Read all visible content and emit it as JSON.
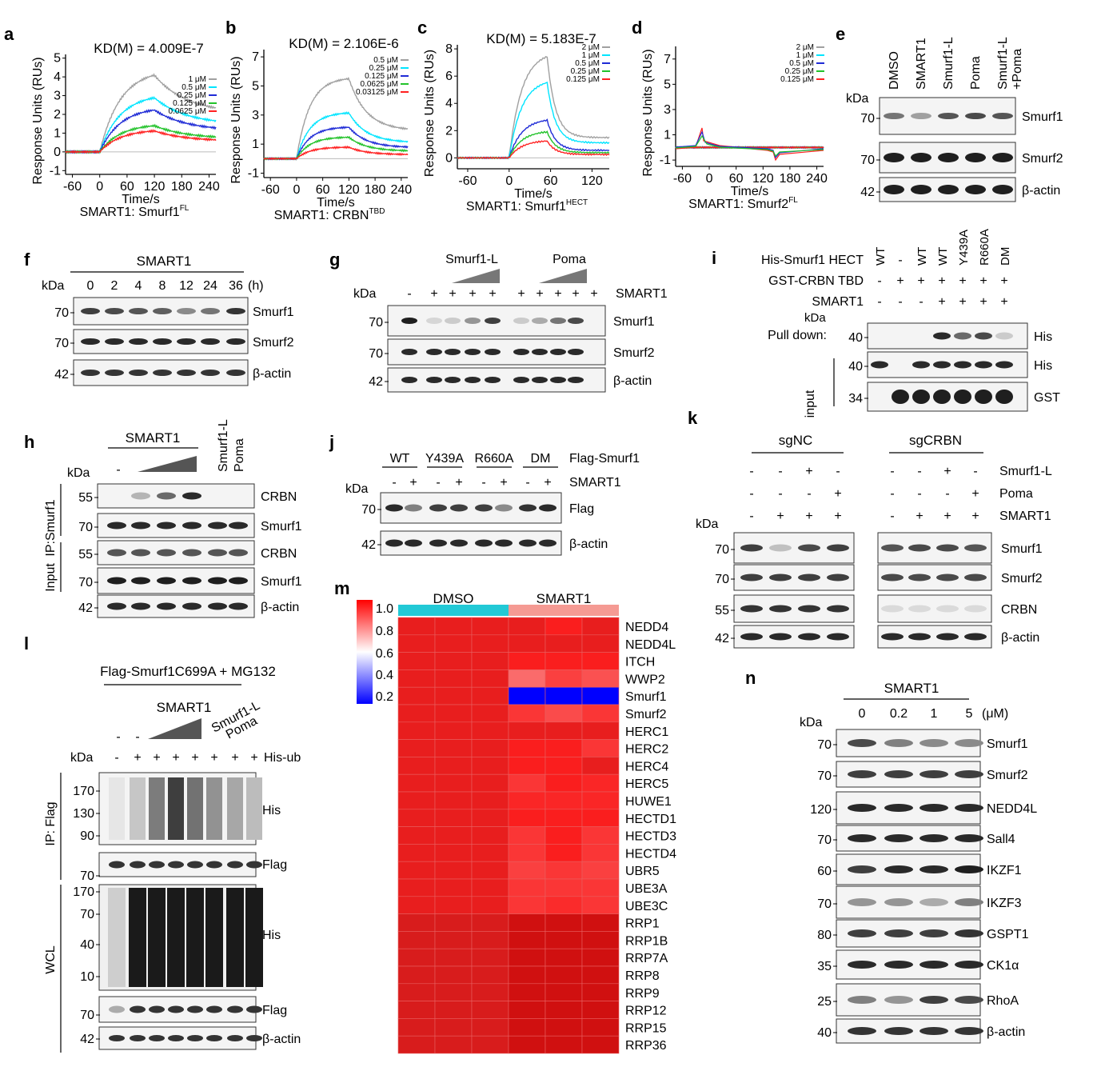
{
  "figure": {
    "panels": {
      "a": {
        "letter": "a",
        "kd": "KD(M) = 4.009E-7",
        "ylabel": "Response Units (RUs)",
        "xlabel": "Time/s",
        "subtitle_main": "SMART1: Smurf1",
        "subtitle_sup": "FL",
        "yticks": [
          "5",
          "4",
          "3",
          "2",
          "1",
          "0",
          "-1"
        ],
        "xticks": [
          "-60",
          "0",
          "60",
          "120",
          "180",
          "240"
        ],
        "legend": [
          "1 μM",
          "0.5 μM",
          "0.25 μM",
          "0.125 μM",
          "0.0625 μM"
        ]
      },
      "b": {
        "letter": "b",
        "kd": "KD(M) = 2.106E-6",
        "ylabel": "Response Units (RUs)",
        "xlabel": "Time/s",
        "subtitle_main": "SMART1: CRBN",
        "subtitle_sup": "TBD",
        "yticks": [
          "7",
          "5",
          "3",
          "1",
          "-1"
        ],
        "xticks": [
          "-60",
          "0",
          "60",
          "120",
          "180",
          "240"
        ],
        "legend": [
          "0.5 μM",
          "0.25 μM",
          "0.125 μM",
          "0.0625 μM",
          "0.03125 μM"
        ]
      },
      "c": {
        "letter": "c",
        "kd": "KD(M) = 5.183E-7",
        "ylabel": "Response Units (RUs)",
        "xlabel": "Time/s",
        "subtitle_main": "SMART1: Smurf1",
        "subtitle_sup": "HECT",
        "yticks": [
          "8",
          "6",
          "4",
          "2",
          "0"
        ],
        "xticks": [
          "-60",
          "0",
          "60",
          "120"
        ],
        "legend": [
          "2 μM",
          "1 μM",
          "0.5 μM",
          "0.25 μM",
          "0.125 μM"
        ]
      },
      "d": {
        "letter": "d",
        "ylabel": "Response Units (RUs)",
        "xlabel": "Time/s",
        "subtitle_main": "SMART1: Smurf2",
        "subtitle_sup": "FL",
        "yticks": [
          "7",
          "5",
          "3",
          "1",
          "-1"
        ],
        "xticks": [
          "-60",
          "0",
          "60",
          "120",
          "180",
          "240"
        ],
        "legend": [
          "2 μM",
          "1 μM",
          "0.5 μM",
          "0.25 μM",
          "0.125 μM"
        ]
      },
      "e": {
        "letter": "e",
        "kda": "kDa",
        "lanes": [
          "DMSO",
          "SMART1",
          "Smurf1-L",
          "Poma",
          "Smurf1-L"
        ],
        "lane5_line2": "+Poma",
        "blots": [
          [
            "70",
            "Smurf1"
          ],
          [
            "70",
            "Smurf2"
          ],
          [
            "42",
            "β-actin"
          ]
        ]
      },
      "f": {
        "letter": "f",
        "kda": "kDa",
        "treatment": "SMART1",
        "times": [
          "0",
          "2",
          "4",
          "8",
          "12",
          "24",
          "36"
        ],
        "unit": "(h)",
        "blots": [
          [
            "70",
            "Smurf1"
          ],
          [
            "70",
            "Smurf2"
          ],
          [
            "42",
            "β-actin"
          ]
        ]
      },
      "g": {
        "letter": "g",
        "kda": "kDa",
        "group1": "Smurf1-L",
        "group2": "Poma",
        "row_label": "SMART1",
        "signs": [
          "-",
          "+",
          "+",
          "+",
          "+",
          "+",
          "+",
          "+",
          "+",
          "+"
        ],
        "blots": [
          [
            "70",
            "Smurf1"
          ],
          [
            "70",
            "Smurf2"
          ],
          [
            "42",
            "β-actin"
          ]
        ]
      },
      "h": {
        "letter": "h",
        "kda": "kDa",
        "treatment": "SMART1",
        "lane1": "-",
        "extra1": "Smurf1-L",
        "extra2": "Poma",
        "ip_label": "IP:Smurf1",
        "input_label": "Input",
        "blots": [
          [
            "55",
            "CRBN"
          ],
          [
            "70",
            "Smurf1"
          ],
          [
            "55",
            "CRBN"
          ],
          [
            "70",
            "Smurf1"
          ],
          [
            "42",
            "β-actin"
          ]
        ]
      },
      "i": {
        "letter": "i",
        "kda": "kDa",
        "rows": [
          {
            "label": "His-Smurf1 HECT",
            "vals": [
              "WT",
              "-",
              "WT",
              "WT",
              "Y439A",
              "R660A",
              "DM"
            ]
          },
          {
            "label": "GST-CRBN TBD",
            "vals": [
              "-",
              "+",
              "+",
              "+",
              "+",
              "+",
              "+"
            ]
          },
          {
            "label": "SMART1",
            "vals": [
              "-",
              "-",
              "-",
              "+",
              "+",
              "+",
              "+"
            ]
          }
        ],
        "pulldown": "Pull down:",
        "input": "input",
        "blots": [
          [
            "40",
            "His"
          ],
          [
            "40",
            "His"
          ],
          [
            "34",
            "GST"
          ]
        ]
      },
      "j": {
        "letter": "j",
        "kda": "kDa",
        "groups": [
          "WT",
          "Y439A",
          "R660A",
          "DM"
        ],
        "row1_label": "Flag-Smurf1",
        "row2_label": "SMART1",
        "signs": [
          "-",
          "+",
          "-",
          "+",
          "-",
          "+",
          "-",
          "+"
        ],
        "blots": [
          [
            "70",
            "Flag"
          ],
          [
            "42",
            "β-actin"
          ]
        ]
      },
      "k": {
        "letter": "k",
        "kda": "kDa",
        "group1": "sgNC",
        "group2": "sgCRBN",
        "rows": [
          {
            "label": "Smurf1-L",
            "vals": [
              "-",
              "-",
              "+",
              "-",
              "-",
              "-",
              "+",
              "-"
            ]
          },
          {
            "label": "Poma",
            "vals": [
              "-",
              "-",
              "-",
              "+",
              "-",
              "-",
              "-",
              "+"
            ]
          },
          {
            "label": "SMART1",
            "vals": [
              "-",
              "+",
              "+",
              "+",
              "-",
              "+",
              "+",
              "+"
            ]
          }
        ],
        "blots": [
          [
            "70",
            "Smurf1"
          ],
          [
            "70",
            "Smurf2"
          ],
          [
            "55",
            "CRBN"
          ],
          [
            "42",
            "β-actin"
          ]
        ]
      },
      "l": {
        "letter": "l",
        "kda": "kDa",
        "header": "Flag-Smurf1C699A + MG132",
        "treatment": "SMART1",
        "extra1": "Smurf1-L",
        "extra2": "Poma",
        "row_label": "His-ub",
        "signs": [
          "-",
          "+",
          "+",
          "+",
          "+",
          "+",
          "+",
          "+"
        ],
        "minus1": "-",
        "minus2": "-",
        "ip_label": "IP: Flag",
        "wcl_label": "WCL",
        "ip_his_marks": [
          "170",
          "130",
          "90"
        ],
        "ip_flag_mark": "70",
        "wcl_his_marks": [
          "170",
          "70",
          "40",
          "10"
        ],
        "wcl_flag_mark": "70",
        "actin_mark": "42",
        "labels": [
          "His",
          "Flag",
          "His",
          "Flag",
          "β-actin"
        ]
      },
      "m": {
        "letter": "m",
        "group1": "DMSO",
        "group2": "SMART1",
        "scale": [
          "1.0",
          "0.8",
          "0.6",
          "0.4",
          "0.2"
        ],
        "genes": [
          "NEDD4",
          "NEDD4L",
          "ITCH",
          "WWP2",
          "Smurf1",
          "Smurf2",
          "HERC1",
          "HERC2",
          "HERC4",
          "HERC5",
          "HUWE1",
          "HECTD1",
          "HECTD3",
          "HECTD4",
          "UBR5",
          "UBE3A",
          "UBE3C",
          "RRP1",
          "RRP1B",
          "RRP7A",
          "RRP8",
          "RRP9",
          "RRP12",
          "RRP15",
          "RRP36"
        ],
        "values": [
          [
            1.0,
            1.0,
            1.0,
            0.98,
            0.96,
            0.98
          ],
          [
            1.0,
            1.0,
            1.0,
            1.0,
            1.0,
            1.0
          ],
          [
            1.0,
            1.0,
            1.0,
            0.95,
            0.96,
            0.95
          ],
          [
            1.0,
            1.0,
            1.0,
            0.8,
            0.88,
            0.85
          ],
          [
            1.0,
            1.0,
            1.0,
            0.1,
            0.1,
            0.1
          ],
          [
            1.0,
            1.0,
            1.0,
            0.9,
            0.86,
            0.9
          ],
          [
            1.0,
            1.0,
            1.0,
            1.0,
            1.0,
            1.0
          ],
          [
            1.0,
            1.0,
            1.0,
            0.95,
            0.95,
            0.9
          ],
          [
            1.0,
            1.0,
            1.0,
            0.95,
            0.95,
            1.0
          ],
          [
            1.0,
            1.0,
            1.0,
            0.9,
            0.95,
            0.93
          ],
          [
            1.0,
            1.0,
            1.0,
            0.93,
            0.93,
            0.93
          ],
          [
            1.0,
            1.0,
            1.0,
            0.95,
            0.97,
            0.95
          ],
          [
            1.0,
            1.0,
            1.0,
            0.9,
            0.95,
            0.9
          ],
          [
            1.0,
            1.0,
            1.0,
            0.9,
            0.95,
            0.9
          ],
          [
            1.0,
            1.0,
            1.0,
            0.88,
            0.9,
            0.88
          ],
          [
            1.0,
            1.0,
            1.0,
            0.9,
            0.9,
            0.9
          ],
          [
            1.0,
            1.0,
            1.0,
            0.9,
            0.92,
            0.9
          ],
          [
            1.0,
            1.0,
            1.0,
            1.0,
            1.0,
            1.0
          ],
          [
            1.0,
            1.0,
            1.0,
            1.0,
            1.0,
            1.0
          ],
          [
            1.0,
            1.0,
            1.0,
            1.0,
            1.0,
            1.0
          ],
          [
            1.0,
            1.0,
            1.0,
            1.0,
            1.0,
            1.0
          ],
          [
            1.0,
            1.0,
            1.0,
            1.0,
            1.0,
            1.0
          ],
          [
            1.0,
            1.0,
            1.0,
            1.0,
            1.0,
            1.0
          ],
          [
            1.0,
            1.0,
            1.0,
            1.0,
            1.0,
            1.0
          ],
          [
            1.0,
            1.0,
            1.0,
            1.0,
            1.0,
            1.0
          ]
        ]
      },
      "n": {
        "letter": "n",
        "kda": "kDa",
        "treatment": "SMART1",
        "doses": [
          "0",
          "0.2",
          "1",
          "5"
        ],
        "unit": "(μM)",
        "blots": [
          [
            "70",
            "Smurf1"
          ],
          [
            "70",
            "Smurf2"
          ],
          [
            "120",
            "NEDD4L"
          ],
          [
            "70",
            "Sall4"
          ],
          [
            "60",
            "IKZF1"
          ],
          [
            "70",
            "IKZF3"
          ],
          [
            "80",
            "GSPT1"
          ],
          [
            "35",
            "CK1α"
          ],
          [
            "25",
            "RhoA"
          ],
          [
            "40",
            "β-actin"
          ]
        ]
      }
    }
  }
}
